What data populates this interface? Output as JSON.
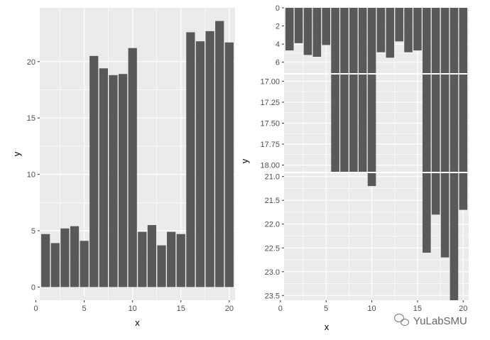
{
  "chart_data": [
    {
      "type": "bar",
      "xlabel": "x",
      "ylabel": "y",
      "x": [
        1,
        2,
        3,
        4,
        5,
        6,
        7,
        8,
        9,
        10,
        11,
        12,
        13,
        14,
        15,
        16,
        17,
        18,
        19,
        20
      ],
      "values": [
        4.7,
        3.9,
        5.2,
        5.4,
        4.1,
        20.5,
        19.4,
        18.8,
        18.9,
        21.2,
        4.9,
        5.5,
        3.7,
        4.9,
        4.7,
        22.6,
        21.8,
        22.7,
        23.6,
        21.7
      ],
      "xlim": [
        0.4,
        20.6
      ],
      "ylim": [
        -1.17,
        24.77
      ],
      "x_ticks": [
        0,
        5,
        10,
        15,
        20
      ],
      "x_tick_labels": [
        "0",
        "5",
        "10",
        "15",
        "20"
      ],
      "y_ticks": [
        0,
        5,
        10,
        15,
        20
      ],
      "y_tick_labels": [
        "0",
        "5",
        "10",
        "15",
        "20"
      ],
      "y_reversed": false,
      "grid": true
    },
    {
      "type": "bar",
      "xlabel": "x",
      "ylabel": "y",
      "x": [
        1,
        2,
        3,
        4,
        5,
        6,
        7,
        8,
        9,
        10,
        11,
        12,
        13,
        14,
        15,
        16,
        17,
        18,
        19,
        20
      ],
      "values": [
        4.7,
        3.9,
        5.2,
        5.4,
        4.1,
        20.5,
        19.4,
        18.8,
        18.9,
        21.2,
        4.9,
        5.5,
        3.7,
        4.9,
        4.7,
        22.6,
        21.8,
        22.7,
        23.6,
        21.7
      ],
      "y_reversed": true,
      "grid": true,
      "xlim": [
        0.4,
        20.6
      ],
      "x_ticks": [
        0,
        5,
        10,
        15,
        20
      ],
      "x_tick_labels": [
        "0",
        "5",
        "10",
        "15",
        "20"
      ],
      "segments": [
        {
          "range": [
            0,
            7.2
          ],
          "ticks": [
            0,
            2,
            4,
            6
          ],
          "tick_labels": [
            "0",
            "2",
            "4",
            "6"
          ]
        },
        {
          "range": [
            16.92,
            18.08
          ],
          "ticks": [
            17,
            17.25,
            17.5,
            17.75,
            18
          ],
          "tick_labels": [
            "17.00",
            "17.25",
            "17.50",
            "17.75",
            "18.00"
          ]
        },
        {
          "range": [
            20.93,
            23.6
          ],
          "ticks": [
            21,
            21.5,
            22,
            22.5,
            23,
            23.5
          ],
          "tick_labels": [
            "21.0",
            "21.5",
            "22.0",
            "22.5",
            "23.0",
            "23.5"
          ]
        }
      ]
    }
  ],
  "watermark": {
    "text": "YuLabSMU",
    "icon": "wechat-icon"
  },
  "colors": {
    "panel": "#ebebeb",
    "bar": "#595959",
    "grid": "#ffffff",
    "tick_text": "#4d4d4d"
  }
}
